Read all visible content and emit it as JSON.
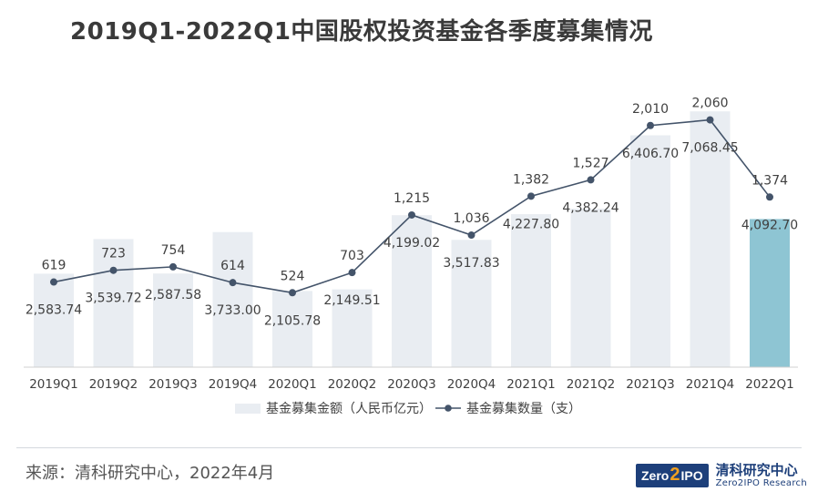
{
  "title": "2019Q1-2022Q1中国股权投资基金各季度募集情况",
  "source": "来源：清科研究中心，2022年4月",
  "logo": {
    "badge_left": "Zero",
    "badge_two": "2",
    "badge_right": "IPO",
    "cn": "清科研究中心",
    "en": "Zero2IPO Research"
  },
  "colors": {
    "bar": "#e9edf2",
    "bar_highlight": "#8ec5d3",
    "line": "#44546a",
    "text": "#404040",
    "axis": "#d0d0d0"
  },
  "chart_data": {
    "type": "bar+line",
    "title": "2019Q1-2022Q1中国股权投资基金各季度募集情况",
    "categories": [
      "2019Q1",
      "2019Q2",
      "2019Q3",
      "2019Q4",
      "2020Q1",
      "2020Q2",
      "2020Q3",
      "2020Q4",
      "2021Q1",
      "2021Q2",
      "2021Q3",
      "2021Q4",
      "2022Q1"
    ],
    "series": [
      {
        "name": "基金募集金额（人民币亿元）",
        "type": "bar",
        "axis": "primary",
        "values": [
          2583.74,
          3539.72,
          2587.58,
          3733.0,
          2105.78,
          2149.51,
          4199.02,
          3517.83,
          4227.8,
          4382.24,
          6406.7,
          7068.45,
          4092.7
        ],
        "labels": [
          "2,583.74",
          "3,539.72",
          "2,587.58",
          "3,733.00",
          "2,105.78",
          "2,149.51",
          "4,199.02",
          "3,517.83",
          "4,227.80",
          "4,382.24",
          "6,406.70",
          "7,068.45",
          "4,092.70"
        ]
      },
      {
        "name": "基金募集数量（支）",
        "type": "line",
        "axis": "secondary",
        "values": [
          619,
          723,
          754,
          614,
          524,
          703,
          1215,
          1036,
          1382,
          1527,
          2010,
          2060,
          1374
        ],
        "labels": [
          "619",
          "723",
          "754",
          "614",
          "524",
          "703",
          "1,215",
          "1,036",
          "1,382",
          "1,527",
          "2,010",
          "2,060",
          "1,374"
        ]
      }
    ],
    "highlight_category": "2022Q1",
    "legend_position": "bottom",
    "grid": false
  }
}
